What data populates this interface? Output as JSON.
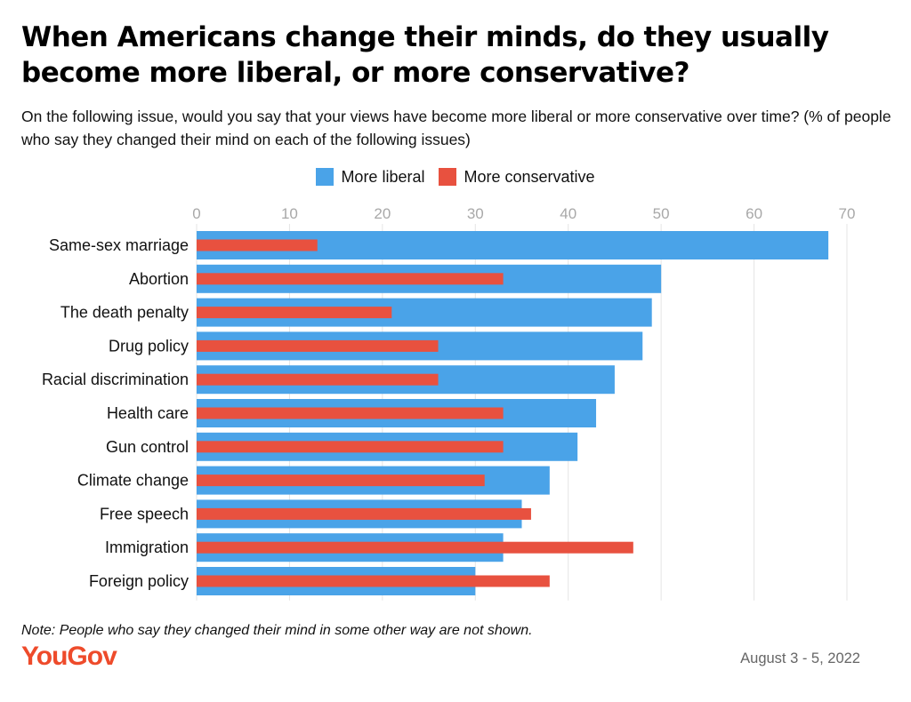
{
  "title": "When Americans change their minds, do they usually become more liberal, or more conservative?",
  "subtitle": "On the following issue, would you say that your views have become more liberal or more conservative over time? (% of people who say they changed their mind on each of the following issues)",
  "note": "Note: People who say they changed their mind in some other way are not shown.",
  "logo_text": "YouGov",
  "date": "August 3 - 5, 2022",
  "colors": {
    "liberal": "#4aa3e8",
    "conservative": "#e8513f",
    "grid": "#e4e4e4",
    "tick": "#a8a8a8",
    "brand": "#ee4b2b"
  },
  "chart_data": {
    "type": "bar",
    "orientation": "horizontal",
    "categories": [
      "Same-sex marriage",
      "Abortion",
      "The death penalty",
      "Drug policy",
      "Racial discrimination",
      "Health care",
      "Gun control",
      "Climate change",
      "Free speech",
      "Immigration",
      "Foreign policy"
    ],
    "series": [
      {
        "name": "More liberal",
        "values": [
          68,
          50,
          49,
          48,
          45,
          43,
          41,
          38,
          35,
          33,
          30
        ]
      },
      {
        "name": "More conservative",
        "values": [
          13,
          33,
          21,
          26,
          26,
          33,
          33,
          31,
          36,
          47,
          38
        ]
      }
    ],
    "xlim": [
      0,
      70
    ],
    "xticks": [
      0,
      10,
      20,
      30,
      40,
      50,
      60,
      70
    ],
    "xaxis_position": "top",
    "grid": true,
    "legend_position": "top-center"
  }
}
